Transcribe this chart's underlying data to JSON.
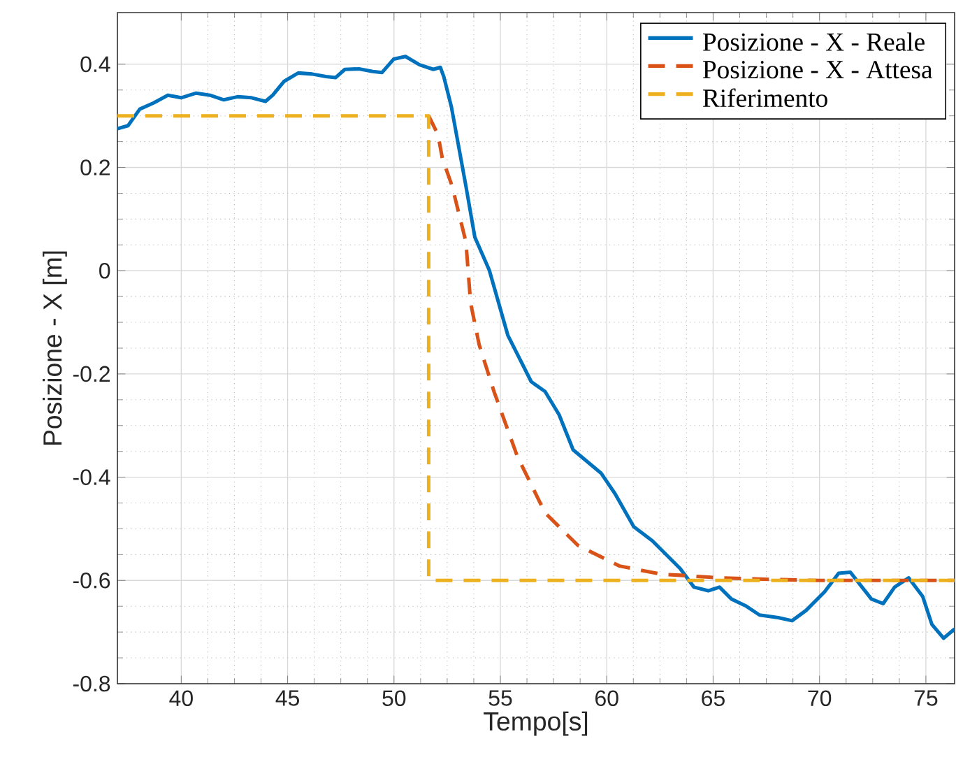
{
  "chart_data": {
    "type": "line",
    "xlabel": "Tempo[s]",
    "ylabel": "Posizione - X [m]",
    "xlim": [
      37,
      76.35
    ],
    "ylim": [
      -0.8,
      0.5
    ],
    "xticks": [
      40,
      45,
      50,
      55,
      60,
      65,
      70,
      75
    ],
    "yticks": [
      -0.8,
      -0.6,
      -0.4,
      -0.2,
      0,
      0.2,
      0.4
    ],
    "grid": true,
    "legend": "top right",
    "series": [
      {
        "name": "Posizione - X - Reale",
        "color": "#0072bd",
        "line_style": "solid",
        "x": [
          37,
          37.5,
          38.05,
          38.7,
          39.37,
          40,
          40.7,
          41.35,
          42,
          42.65,
          43.3,
          43.96,
          44.3,
          44.84,
          45.5,
          46.15,
          46.8,
          47.25,
          47.69,
          48.35,
          49,
          49.44,
          49.99,
          50.54,
          51.2,
          51.85,
          52.18,
          52.34,
          52.7,
          53.38,
          53.8,
          54.48,
          55.35,
          56.45,
          57.1,
          57.76,
          58.42,
          59.73,
          60.39,
          61.27,
          62.14,
          63.45,
          64.1,
          64.77,
          65.3,
          65.86,
          66.52,
          67.18,
          68.06,
          68.71,
          69.37,
          70.24,
          70.9,
          71.45,
          72,
          72.44,
          72.99,
          73.53,
          74.19,
          74.85,
          75.28,
          75.83,
          76.35
        ],
        "values": [
          0.275,
          0.281,
          0.313,
          0.325,
          0.34,
          0.335,
          0.344,
          0.34,
          0.331,
          0.337,
          0.335,
          0.328,
          0.34,
          0.367,
          0.383,
          0.381,
          0.376,
          0.374,
          0.39,
          0.391,
          0.386,
          0.384,
          0.41,
          0.415,
          0.399,
          0.39,
          0.394,
          0.376,
          0.317,
          0.164,
          0.065,
          0.001,
          -0.125,
          -0.215,
          -0.234,
          -0.279,
          -0.347,
          -0.392,
          -0.432,
          -0.496,
          -0.523,
          -0.577,
          -0.613,
          -0.62,
          -0.613,
          -0.636,
          -0.649,
          -0.667,
          -0.672,
          -0.678,
          -0.658,
          -0.622,
          -0.586,
          -0.584,
          -0.613,
          -0.636,
          -0.645,
          -0.613,
          -0.595,
          -0.631,
          -0.685,
          -0.712,
          -0.694
        ]
      },
      {
        "name": "Posizione - X - Attesa",
        "color": "#d95319",
        "line_style": "dashed",
        "x": [
          51.63,
          52.07,
          52.27,
          52.73,
          53.38,
          53.6,
          54.0,
          54.7,
          55.8,
          57.1,
          58.64,
          60.6,
          62.57,
          63.45,
          65.3,
          67.62,
          70,
          76.35
        ],
        "values": [
          0.3,
          0.263,
          0.218,
          0.164,
          0.056,
          -0.062,
          -0.143,
          -0.234,
          -0.36,
          -0.469,
          -0.532,
          -0.572,
          -0.588,
          -0.59,
          -0.595,
          -0.598,
          -0.6,
          -0.6
        ]
      },
      {
        "name": "Riferimento",
        "color": "#edb120",
        "line_style": "dashed",
        "x": [
          37,
          51.63,
          51.63,
          76.35
        ],
        "values": [
          0.3,
          0.3,
          -0.6,
          -0.6
        ]
      }
    ]
  }
}
